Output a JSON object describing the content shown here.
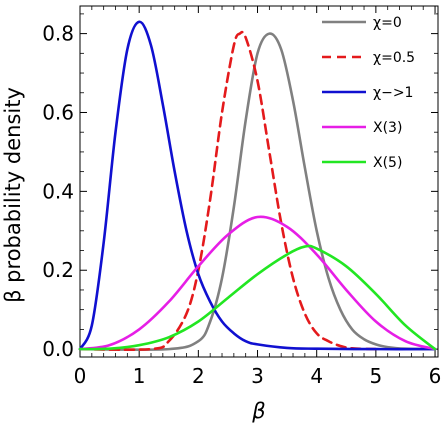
{
  "chart_data": {
    "type": "line",
    "xlabel": "β",
    "ylabel": "β probability density",
    "xlim": [
      0,
      6.05
    ],
    "ylim": [
      -0.02,
      0.87
    ],
    "xticks": [
      0,
      1,
      2,
      3,
      4,
      5,
      6
    ],
    "xtick_labels": [
      "0",
      "1",
      "2",
      "3",
      "4",
      "5",
      "6"
    ],
    "yticks": [
      0.0,
      0.2,
      0.4,
      0.6,
      0.8
    ],
    "ytick_labels": [
      "0.0",
      "0.2",
      "0.4",
      "0.6",
      "0.8"
    ],
    "grid": false,
    "legend_position": "top-right",
    "series": [
      {
        "name": "χ=0",
        "color": "#808080",
        "dash": "solid",
        "x": [
          0,
          1.5,
          2.0,
          2.2,
          2.4,
          2.6,
          2.8,
          3.0,
          3.2,
          3.4,
          3.6,
          3.8,
          4.0,
          4.2,
          4.4,
          4.6,
          4.8,
          5.0,
          5.2,
          5.5,
          6.0
        ],
        "y": [
          0,
          0,
          0.02,
          0.07,
          0.18,
          0.36,
          0.58,
          0.75,
          0.8,
          0.76,
          0.63,
          0.46,
          0.3,
          0.18,
          0.1,
          0.05,
          0.025,
          0.012,
          0.005,
          0.001,
          0
        ]
      },
      {
        "name": "χ=0.5",
        "color": "#e41a1c",
        "dash": "dashed",
        "x": [
          0,
          1.2,
          1.5,
          1.8,
          2.0,
          2.2,
          2.4,
          2.6,
          2.7,
          2.8,
          3.0,
          3.2,
          3.4,
          3.6,
          3.8,
          4.0,
          4.2,
          4.4,
          4.6,
          5.0
        ],
        "y": [
          0,
          0,
          0.02,
          0.09,
          0.2,
          0.38,
          0.6,
          0.77,
          0.8,
          0.79,
          0.68,
          0.5,
          0.32,
          0.18,
          0.09,
          0.04,
          0.02,
          0.008,
          0.002,
          0
        ]
      },
      {
        "name": "χ−>1",
        "color": "#1010d0",
        "dash": "solid",
        "x": [
          0,
          0.2,
          0.4,
          0.6,
          0.8,
          1.0,
          1.2,
          1.4,
          1.6,
          1.8,
          2.0,
          2.2,
          2.4,
          2.6,
          2.8,
          3.0,
          3.5,
          4.0,
          5.0,
          6.0
        ],
        "y": [
          0,
          0.06,
          0.27,
          0.55,
          0.76,
          0.83,
          0.77,
          0.62,
          0.45,
          0.3,
          0.19,
          0.12,
          0.07,
          0.04,
          0.02,
          0.012,
          0.003,
          0.001,
          0,
          0
        ]
      },
      {
        "name": "X(3)",
        "color": "#e61ee6",
        "dash": "solid",
        "x": [
          0,
          0.5,
          1.0,
          1.5,
          2.0,
          2.5,
          3.0,
          3.5,
          4.0,
          4.5,
          5.0,
          5.5,
          6.0
        ],
        "y": [
          0,
          0.01,
          0.05,
          0.12,
          0.21,
          0.29,
          0.335,
          0.31,
          0.24,
          0.15,
          0.07,
          0.02,
          0
        ]
      },
      {
        "name": "X(5)",
        "color": "#22e622",
        "dash": "solid",
        "x": [
          0,
          0.5,
          1.0,
          1.5,
          2.0,
          2.5,
          3.0,
          3.5,
          3.8,
          4.0,
          4.5,
          5.0,
          5.5,
          6.0
        ],
        "y": [
          0,
          0.001,
          0.01,
          0.03,
          0.07,
          0.13,
          0.19,
          0.24,
          0.26,
          0.255,
          0.21,
          0.14,
          0.06,
          0
        ]
      }
    ]
  }
}
